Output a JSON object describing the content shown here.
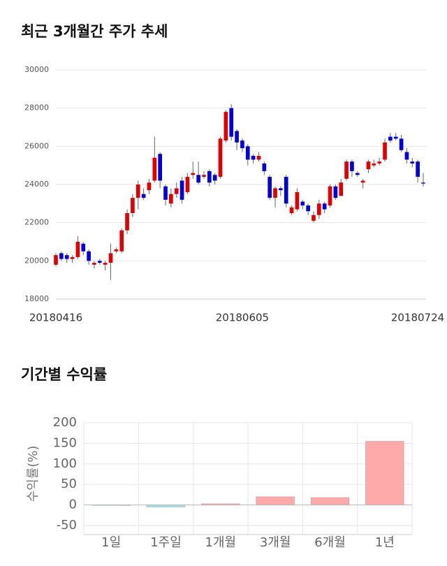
{
  "chart_data": [
    {
      "type": "candlestick",
      "title": "최근 3개월간 주가 추세",
      "categories": [
        "20180416",
        null,
        null,
        null,
        null,
        null,
        null,
        null,
        null,
        null,
        null,
        null,
        null,
        null,
        null,
        null,
        null,
        null,
        null,
        null,
        null,
        null,
        null,
        null,
        null,
        null,
        null,
        null,
        null,
        null,
        null,
        null,
        null,
        null,
        "20180605",
        null,
        null,
        null,
        null,
        null,
        null,
        null,
        null,
        null,
        null,
        null,
        null,
        null,
        null,
        null,
        null,
        null,
        null,
        null,
        null,
        null,
        null,
        null,
        null,
        null,
        null,
        null,
        null,
        null,
        null,
        null,
        null,
        "20180724"
      ],
      "open": [
        19800,
        20400,
        20300,
        20100,
        20200,
        20900,
        20500,
        19800,
        20000,
        19800,
        19900,
        20500,
        20500,
        21600,
        22500,
        23300,
        23500,
        23700,
        24200,
        25600,
        23900,
        23000,
        23500,
        24200,
        23600,
        24500,
        24500,
        24400,
        24700,
        24500,
        24400,
        26300,
        28000,
        26800,
        26300,
        26000,
        25500,
        25300,
        25100,
        24400,
        23300,
        23800,
        24400,
        22500,
        22700,
        23100,
        22900,
        22100,
        22400,
        23000,
        22900,
        23900,
        23400,
        24300,
        25200,
        24600,
        24100,
        24800,
        25000,
        25100,
        25300,
        26500,
        26500,
        26400,
        25700,
        25200,
        25200,
        24100
      ],
      "high": [
        20400,
        20500,
        20400,
        20300,
        21300,
        21000,
        20600,
        20000,
        20100,
        20000,
        20900,
        20700,
        21700,
        22700,
        23500,
        24200,
        23800,
        24300,
        26500,
        25700,
        24000,
        23800,
        24100,
        24400,
        24600,
        25200,
        25200,
        24700,
        24800,
        24600,
        26500,
        27900,
        28200,
        26900,
        26400,
        26100,
        25600,
        25700,
        25200,
        24500,
        23900,
        23900,
        24500,
        22900,
        23800,
        23200,
        23000,
        22600,
        23200,
        23100,
        24000,
        24000,
        24300,
        25300,
        25300,
        24700,
        24300,
        25300,
        25300,
        25400,
        26400,
        26700,
        26700,
        26600,
        25900,
        25400,
        25300,
        24600
      ],
      "low": [
        19700,
        20000,
        19900,
        19900,
        20100,
        20300,
        19800,
        19600,
        19800,
        19500,
        19000,
        20400,
        20400,
        21400,
        22300,
        22700,
        23200,
        23500,
        24100,
        23800,
        22900,
        22800,
        23300,
        23000,
        23500,
        24300,
        24000,
        24300,
        23900,
        24000,
        24300,
        26200,
        26300,
        25800,
        25700,
        25000,
        25100,
        25200,
        24500,
        23200,
        22800,
        23400,
        22800,
        22400,
        22600,
        22700,
        22400,
        22000,
        22200,
        22500,
        22800,
        23200,
        23400,
        24200,
        24400,
        24400,
        23800,
        24600,
        24900,
        25000,
        25200,
        26200,
        26300,
        25700,
        25100,
        24900,
        24100,
        23900
      ],
      "close": [
        20300,
        20100,
        20100,
        20200,
        21000,
        20500,
        20000,
        19900,
        19900,
        19900,
        20400,
        20600,
        21600,
        22500,
        23300,
        24000,
        23300,
        24100,
        25400,
        24200,
        23200,
        23500,
        23800,
        23200,
        24400,
        24600,
        24100,
        24500,
        24100,
        24200,
        26400,
        27800,
        26500,
        26200,
        25900,
        25300,
        25300,
        25500,
        24700,
        23300,
        23800,
        23700,
        23000,
        22800,
        23600,
        22900,
        22600,
        22400,
        23000,
        22700,
        23900,
        23300,
        24100,
        25200,
        24700,
        24500,
        24200,
        25200,
        25100,
        25200,
        26200,
        26300,
        26400,
        25800,
        25300,
        25100,
        24400,
        24050
      ],
      "up_color": "#e00000",
      "down_color": "#0000d8",
      "ylim": [
        18000,
        30000
      ],
      "yticks": [
        18000,
        20000,
        22000,
        24000,
        26000,
        28000,
        30000
      ],
      "grid": true
    },
    {
      "type": "bar",
      "title": "기간별 수익률",
      "y_label": "수익률(%)",
      "categories": [
        "1일",
        "1주일",
        "1개월",
        "3개월",
        "6개월",
        "1년"
      ],
      "values": [
        0.5,
        -5,
        3,
        20,
        18,
        155
      ],
      "colors": [
        "#9fdccf",
        "#a8e0ef",
        "#ffaaaa",
        "#ffaaaa",
        "#ffaaaa",
        "#ffaaaa"
      ],
      "ylim": [
        -72,
        200
      ],
      "yticks": [
        -50,
        0,
        50,
        100,
        150,
        200
      ],
      "grid": true
    }
  ]
}
